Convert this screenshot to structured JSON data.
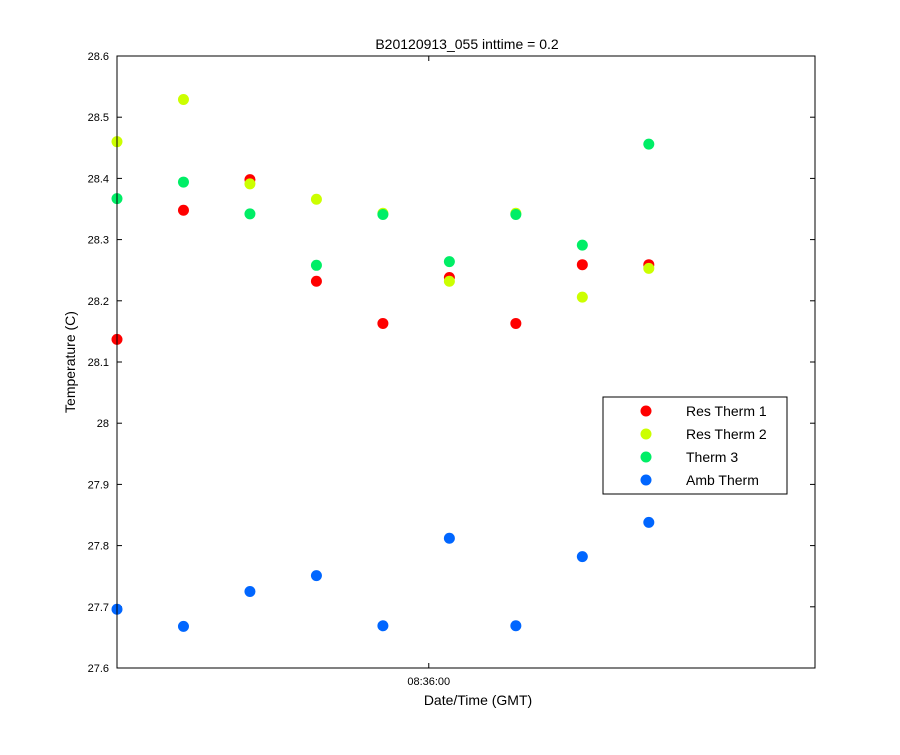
{
  "chart_data": {
    "type": "scatter",
    "title": "B20120913_055 inttime = 0.2",
    "xlabel": "Date/Time (GMT)",
    "ylabel": "Temperature (C)",
    "ylim": [
      27.6,
      28.6
    ],
    "xlim": [
      -1,
      20
    ],
    "yticks": [
      27.6,
      27.7,
      27.8,
      27.9,
      28,
      28.1,
      28.2,
      28.3,
      28.4,
      28.5,
      28.6
    ],
    "yticklabels": [
      "27.6",
      "27.7",
      "27.8",
      "27.9",
      "28",
      "28.1",
      "28.2",
      "28.3",
      "28.4",
      "28.5",
      "28.6"
    ],
    "xticks": [
      {
        "value": 8.38,
        "label": "08:36:00"
      }
    ],
    "x": [
      -1,
      1,
      3,
      5,
      7,
      9,
      11,
      13,
      15
    ],
    "grid": false,
    "legend_placement": "right",
    "series": [
      {
        "name": "Res Therm 1",
        "color": "#ff0000",
        "values": [
          28.137,
          28.348,
          28.398,
          28.232,
          28.163,
          28.238,
          28.163,
          28.259,
          28.259
        ]
      },
      {
        "name": "Res Therm 2",
        "color": "#ccff00",
        "values": [
          28.46,
          28.529,
          28.391,
          28.366,
          28.343,
          28.232,
          28.343,
          28.206,
          28.253
        ]
      },
      {
        "name": "Therm 3",
        "color": "#00ee66",
        "values": [
          28.367,
          28.394,
          28.342,
          28.258,
          28.341,
          28.264,
          28.341,
          28.291,
          28.456
        ]
      },
      {
        "name": "Amb Therm",
        "color": "#0066ff",
        "values": [
          27.696,
          27.668,
          27.725,
          27.751,
          27.669,
          27.812,
          27.669,
          27.782,
          27.838
        ]
      }
    ]
  }
}
